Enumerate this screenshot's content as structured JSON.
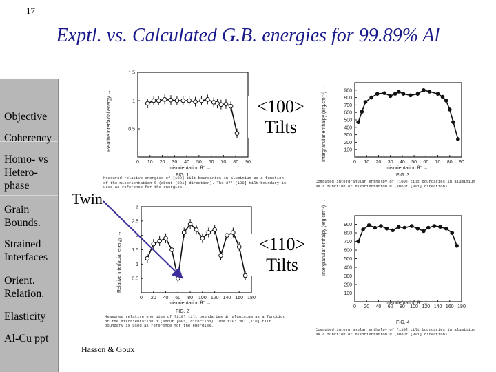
{
  "slide_number": "17",
  "title": "Exptl. vs. Calculated G.B. energies for 99.89% Al",
  "sidebar": {
    "items": [
      {
        "label": "Objective"
      },
      {
        "label": "Coherency"
      },
      {
        "label": "Homo- vs Hetero- phase"
      },
      {
        "label": "Grain Bounds."
      },
      {
        "label": "Strained Interfaces"
      },
      {
        "label": "Orient. Relation."
      },
      {
        "label": "Elasticity"
      },
      {
        "label": "Al-Cu ppt"
      }
    ]
  },
  "labels": {
    "tilts_100_line1": "<100>",
    "tilts_100_line2": "Tilts",
    "tilts_110_line1": "<110>",
    "tilts_110_line2": "Tilts",
    "twin": "Twin",
    "credit": "Hasson & Goux"
  },
  "figures": {
    "fig1_caption": "Measured relative energies of [100] tilt boundaries in aluminium as a function of the misorientation θ (about [001] direction). The 37° [100] tilt boundary is used as reference for the energies.",
    "fig2_caption": "Measured relative energies of [110] tilt boundaries in aluminium as a function of the misorientation θ (about [001] direction). The 129° 30' [110] tilt boundary is used as reference for the energies.",
    "fig3_caption": "Computed intergranular enthalpy of [100] tilt boundaries in aluminium as a function of misorientation θ (about [001] direction).",
    "fig4_caption": "Computed intergranular enthalpy of [110] tilt boundaries in aluminium as a function of misorientation θ (about [001] direction).",
    "fig1_label": "FIG. 1",
    "fig2_label": "FIG. 2",
    "fig3_label": "FIG. 3",
    "fig4_label": "FIG. 4",
    "left_xaxis": "misorientation θ° →",
    "right_xaxis": "misorientation θ° →",
    "left_yaxis": "Relative interfacial energy →",
    "right_yaxis": "Intergranular enthalpy (erg.cm⁻²) →"
  },
  "chart_data": [
    {
      "id": "fig1",
      "type": "scatter",
      "xlabel": "misorientation θ°",
      "ylabel": "Relative interfacial energy",
      "xlim": [
        0,
        90
      ],
      "ylim": [
        0,
        1.5
      ],
      "xticks": [
        0,
        10,
        20,
        30,
        40,
        50,
        60,
        70,
        80,
        90
      ],
      "yticks": [
        0.5,
        1,
        1.5
      ],
      "x": [
        8,
        13,
        17,
        22,
        27,
        32,
        37,
        42,
        47,
        52,
        57,
        62,
        65,
        68,
        72,
        76,
        81
      ],
      "y": [
        0.95,
        1.0,
        1.0,
        1.02,
        1.01,
        1.0,
        1.0,
        1.0,
        0.98,
        1.0,
        1.02,
        0.97,
        0.95,
        0.93,
        0.94,
        0.9,
        0.42
      ]
    },
    {
      "id": "fig2",
      "type": "scatter",
      "xlabel": "misorientation θ°",
      "ylabel": "Relative interfacial energy",
      "xlim": [
        0,
        180
      ],
      "ylim": [
        0,
        3.0
      ],
      "xticks": [
        0,
        20,
        40,
        60,
        80,
        100,
        120,
        140,
        160,
        180
      ],
      "yticks": [
        0.5,
        1.0,
        1.5,
        2.0,
        2.5,
        3.0
      ],
      "x": [
        10,
        20,
        30,
        40,
        50,
        60,
        70,
        80,
        90,
        100,
        110,
        120,
        130,
        140,
        150,
        160,
        170
      ],
      "y": [
        1.2,
        1.7,
        1.8,
        1.9,
        1.5,
        0.5,
        2.1,
        2.4,
        2.2,
        1.9,
        2.1,
        2.2,
        1.3,
        2.0,
        2.1,
        1.6,
        0.6
      ]
    },
    {
      "id": "fig3",
      "type": "line",
      "xlabel": "misorientation θ°",
      "ylabel": "Intergranular enthalpy (erg.cm⁻²)",
      "xlim": [
        0,
        90
      ],
      "ylim": [
        0,
        1000
      ],
      "xticks": [
        0,
        10,
        20,
        30,
        40,
        50,
        60,
        70,
        80,
        90
      ],
      "yticks": [
        100,
        200,
        300,
        400,
        500,
        600,
        700,
        800,
        900
      ],
      "x": [
        3,
        6,
        9,
        14,
        19,
        25,
        30,
        34,
        37,
        41,
        47,
        53,
        58,
        63,
        70,
        74,
        77,
        80,
        83,
        87
      ],
      "y": [
        470,
        610,
        740,
        800,
        850,
        860,
        820,
        850,
        880,
        850,
        830,
        850,
        900,
        880,
        850,
        810,
        760,
        640,
        470,
        240
      ]
    },
    {
      "id": "fig4",
      "type": "line",
      "xlabel": "misorientation θ°",
      "ylabel": "Intergranular enthalpy (erg.cm⁻²)",
      "xlim": [
        0,
        180
      ],
      "ylim": [
        0,
        1000
      ],
      "xticks": [
        0,
        20,
        40,
        60,
        80,
        100,
        120,
        140,
        160,
        180
      ],
      "yticks": [
        100,
        200,
        300,
        400,
        500,
        600,
        700,
        800,
        900
      ],
      "x": [
        6,
        14,
        24,
        34,
        44,
        54,
        64,
        74,
        84,
        96,
        106,
        116,
        124,
        134,
        144,
        154,
        164,
        172
      ],
      "y": [
        700,
        840,
        890,
        860,
        880,
        850,
        830,
        870,
        860,
        880,
        850,
        820,
        860,
        880,
        870,
        850,
        800,
        650
      ]
    }
  ]
}
